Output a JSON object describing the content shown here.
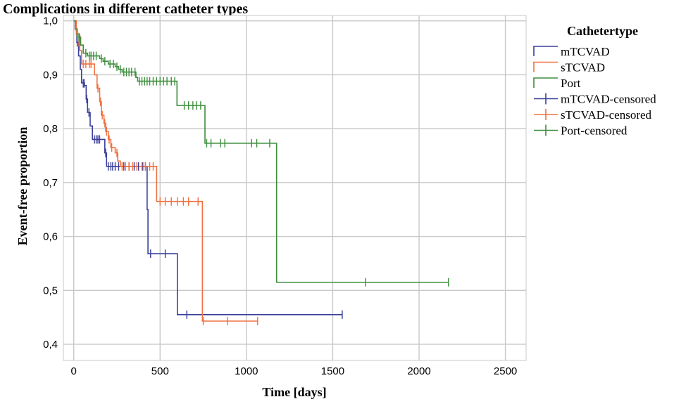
{
  "chart_data": {
    "type": "line",
    "title": "Complications in different catheter types",
    "xlabel": "Time [days]",
    "ylabel": "Event-free proportion",
    "xlim": [
      -60,
      2620
    ],
    "ylim": [
      0.37,
      1.01
    ],
    "x_ticks": [
      0,
      500,
      1000,
      1500,
      2000,
      2500
    ],
    "y_ticks": [
      0.4,
      0.5,
      0.6,
      0.7,
      0.8,
      0.9,
      1.0
    ],
    "y_tick_labels": [
      "0,4",
      "0,5",
      "0,6",
      "0,7",
      "0,8",
      "0,9",
      "1,0"
    ],
    "grid": true,
    "legend_title": "Cathetertype",
    "legend_position": "right",
    "series": [
      {
        "name": "mTCVAD",
        "color": "#3a3f9a",
        "steps": [
          [
            0,
            1.0
          ],
          [
            8,
            0.985
          ],
          [
            18,
            0.96
          ],
          [
            28,
            0.935
          ],
          [
            38,
            0.91
          ],
          [
            45,
            0.885
          ],
          [
            62,
            0.88
          ],
          [
            72,
            0.855
          ],
          [
            80,
            0.83
          ],
          [
            95,
            0.805
          ],
          [
            108,
            0.78
          ],
          [
            180,
            0.755
          ],
          [
            190,
            0.73
          ],
          [
            425,
            0.65
          ],
          [
            430,
            0.568
          ],
          [
            600,
            0.455
          ],
          [
            1555,
            0.455
          ]
        ],
        "censored": [
          [
            20,
            0.96
          ],
          [
            55,
            0.884
          ],
          [
            60,
            0.884
          ],
          [
            75,
            0.855
          ],
          [
            88,
            0.83
          ],
          [
            120,
            0.78
          ],
          [
            130,
            0.78
          ],
          [
            140,
            0.78
          ],
          [
            150,
            0.78
          ],
          [
            185,
            0.755
          ],
          [
            200,
            0.73
          ],
          [
            215,
            0.73
          ],
          [
            225,
            0.73
          ],
          [
            240,
            0.73
          ],
          [
            260,
            0.73
          ],
          [
            290,
            0.73
          ],
          [
            320,
            0.73
          ],
          [
            350,
            0.73
          ],
          [
            375,
            0.73
          ],
          [
            400,
            0.73
          ],
          [
            415,
            0.73
          ],
          [
            445,
            0.568
          ],
          [
            530,
            0.568
          ],
          [
            655,
            0.455
          ],
          [
            1555,
            0.455
          ]
        ]
      },
      {
        "name": "sTCVAD",
        "color": "#f07040",
        "steps": [
          [
            0,
            1.0
          ],
          [
            15,
            0.975
          ],
          [
            35,
            0.945
          ],
          [
            45,
            0.92
          ],
          [
            120,
            0.9
          ],
          [
            135,
            0.875
          ],
          [
            150,
            0.85
          ],
          [
            160,
            0.825
          ],
          [
            175,
            0.81
          ],
          [
            185,
            0.795
          ],
          [
            200,
            0.78
          ],
          [
            215,
            0.765
          ],
          [
            240,
            0.755
          ],
          [
            255,
            0.74
          ],
          [
            270,
            0.73
          ],
          [
            480,
            0.665
          ],
          [
            745,
            0.443
          ],
          [
            1065,
            0.443
          ]
        ],
        "censored": [
          [
            10,
            0.99
          ],
          [
            30,
            0.96
          ],
          [
            55,
            0.92
          ],
          [
            70,
            0.92
          ],
          [
            90,
            0.92
          ],
          [
            100,
            0.92
          ],
          [
            140,
            0.875
          ],
          [
            155,
            0.85
          ],
          [
            165,
            0.825
          ],
          [
            180,
            0.81
          ],
          [
            190,
            0.795
          ],
          [
            205,
            0.78
          ],
          [
            220,
            0.765
          ],
          [
            250,
            0.755
          ],
          [
            280,
            0.73
          ],
          [
            300,
            0.73
          ],
          [
            320,
            0.73
          ],
          [
            340,
            0.73
          ],
          [
            365,
            0.73
          ],
          [
            395,
            0.73
          ],
          [
            415,
            0.73
          ],
          [
            440,
            0.73
          ],
          [
            460,
            0.73
          ],
          [
            500,
            0.665
          ],
          [
            530,
            0.665
          ],
          [
            565,
            0.665
          ],
          [
            600,
            0.665
          ],
          [
            635,
            0.665
          ],
          [
            665,
            0.665
          ],
          [
            720,
            0.665
          ],
          [
            750,
            0.443
          ],
          [
            890,
            0.443
          ],
          [
            1065,
            0.443
          ]
        ]
      },
      {
        "name": "Port",
        "color": "#3e8e3e",
        "steps": [
          [
            0,
            1.0
          ],
          [
            10,
            0.985
          ],
          [
            20,
            0.97
          ],
          [
            40,
            0.955
          ],
          [
            55,
            0.94
          ],
          [
            80,
            0.935
          ],
          [
            150,
            0.93
          ],
          [
            170,
            0.925
          ],
          [
            200,
            0.92
          ],
          [
            240,
            0.915
          ],
          [
            260,
            0.91
          ],
          [
            280,
            0.905
          ],
          [
            360,
            0.895
          ],
          [
            370,
            0.888
          ],
          [
            598,
            0.843
          ],
          [
            760,
            0.773
          ],
          [
            1175,
            0.515
          ],
          [
            2170,
            0.515
          ]
        ],
        "censored": [
          [
            30,
            0.97
          ],
          [
            70,
            0.94
          ],
          [
            90,
            0.935
          ],
          [
            100,
            0.935
          ],
          [
            115,
            0.935
          ],
          [
            130,
            0.935
          ],
          [
            160,
            0.93
          ],
          [
            180,
            0.925
          ],
          [
            210,
            0.92
          ],
          [
            230,
            0.92
          ],
          [
            250,
            0.915
          ],
          [
            270,
            0.91
          ],
          [
            290,
            0.905
          ],
          [
            305,
            0.905
          ],
          [
            320,
            0.905
          ],
          [
            335,
            0.905
          ],
          [
            355,
            0.905
          ],
          [
            380,
            0.888
          ],
          [
            395,
            0.888
          ],
          [
            410,
            0.888
          ],
          [
            425,
            0.888
          ],
          [
            440,
            0.888
          ],
          [
            460,
            0.888
          ],
          [
            480,
            0.888
          ],
          [
            500,
            0.888
          ],
          [
            520,
            0.888
          ],
          [
            540,
            0.888
          ],
          [
            565,
            0.888
          ],
          [
            585,
            0.888
          ],
          [
            640,
            0.843
          ],
          [
            665,
            0.843
          ],
          [
            690,
            0.843
          ],
          [
            710,
            0.843
          ],
          [
            735,
            0.843
          ],
          [
            770,
            0.773
          ],
          [
            795,
            0.773
          ],
          [
            850,
            0.773
          ],
          [
            875,
            0.773
          ],
          [
            1030,
            0.773
          ],
          [
            1060,
            0.773
          ],
          [
            1135,
            0.773
          ],
          [
            1690,
            0.515
          ],
          [
            2170,
            0.515
          ]
        ]
      }
    ],
    "legend_entries": [
      "mTCVAD",
      "sTCVAD",
      "Port",
      "mTCVAD-censored",
      "sTCVAD-censored",
      "Port-censored"
    ]
  }
}
